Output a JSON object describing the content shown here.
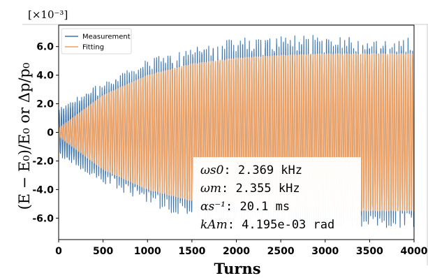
{
  "chart_data": {
    "type": "line",
    "title": "",
    "xlabel": "Turns",
    "ylabel": "(E − E₀)/E₀ or Δp/p₀",
    "y_scale_label": "[×10⁻³]",
    "xlim": [
      0,
      4000
    ],
    "ylim": [
      -7.5,
      7.5
    ],
    "x_ticks": [
      0,
      500,
      1000,
      1500,
      2000,
      2500,
      3000,
      3500,
      4000
    ],
    "y_ticks": [
      6.0,
      4.0,
      2.0,
      0,
      -2.0,
      -4.0,
      -6.0
    ],
    "y_tick_labels": [
      "6.0",
      "4.0",
      "2.0",
      "0",
      "-2.0",
      "-4.0",
      "-6.0"
    ],
    "grid": false,
    "legend_position": "top-left",
    "series": [
      {
        "name": "Measurement",
        "color": "#3b73b0",
        "envelope_x": [
          0,
          500,
          1000,
          1500,
          2000,
          2500,
          3000,
          3500,
          4000
        ],
        "envelope_y": [
          1.5,
          3.2,
          4.6,
          5.5,
          5.9,
          6.1,
          6.1,
          6.0,
          6.0
        ]
      },
      {
        "name": "Fitting",
        "color": "#f0a060",
        "envelope_x": [
          0,
          500,
          1000,
          1500,
          2000,
          2500,
          3000,
          3500,
          4000
        ],
        "envelope_y": [
          0.3,
          2.6,
          4.0,
          4.8,
          5.2,
          5.4,
          5.5,
          5.5,
          5.5
        ]
      }
    ],
    "annotations": [
      {
        "symbol": "ωs0",
        "text": ": 2.369 kHz"
      },
      {
        "symbol": "ωm",
        "text": ": 2.355 kHz"
      },
      {
        "symbol": "αs⁻¹",
        "text": ": 20.1 ms"
      },
      {
        "symbol": "kAm",
        "text": ": 4.195e-03 rad"
      }
    ]
  }
}
